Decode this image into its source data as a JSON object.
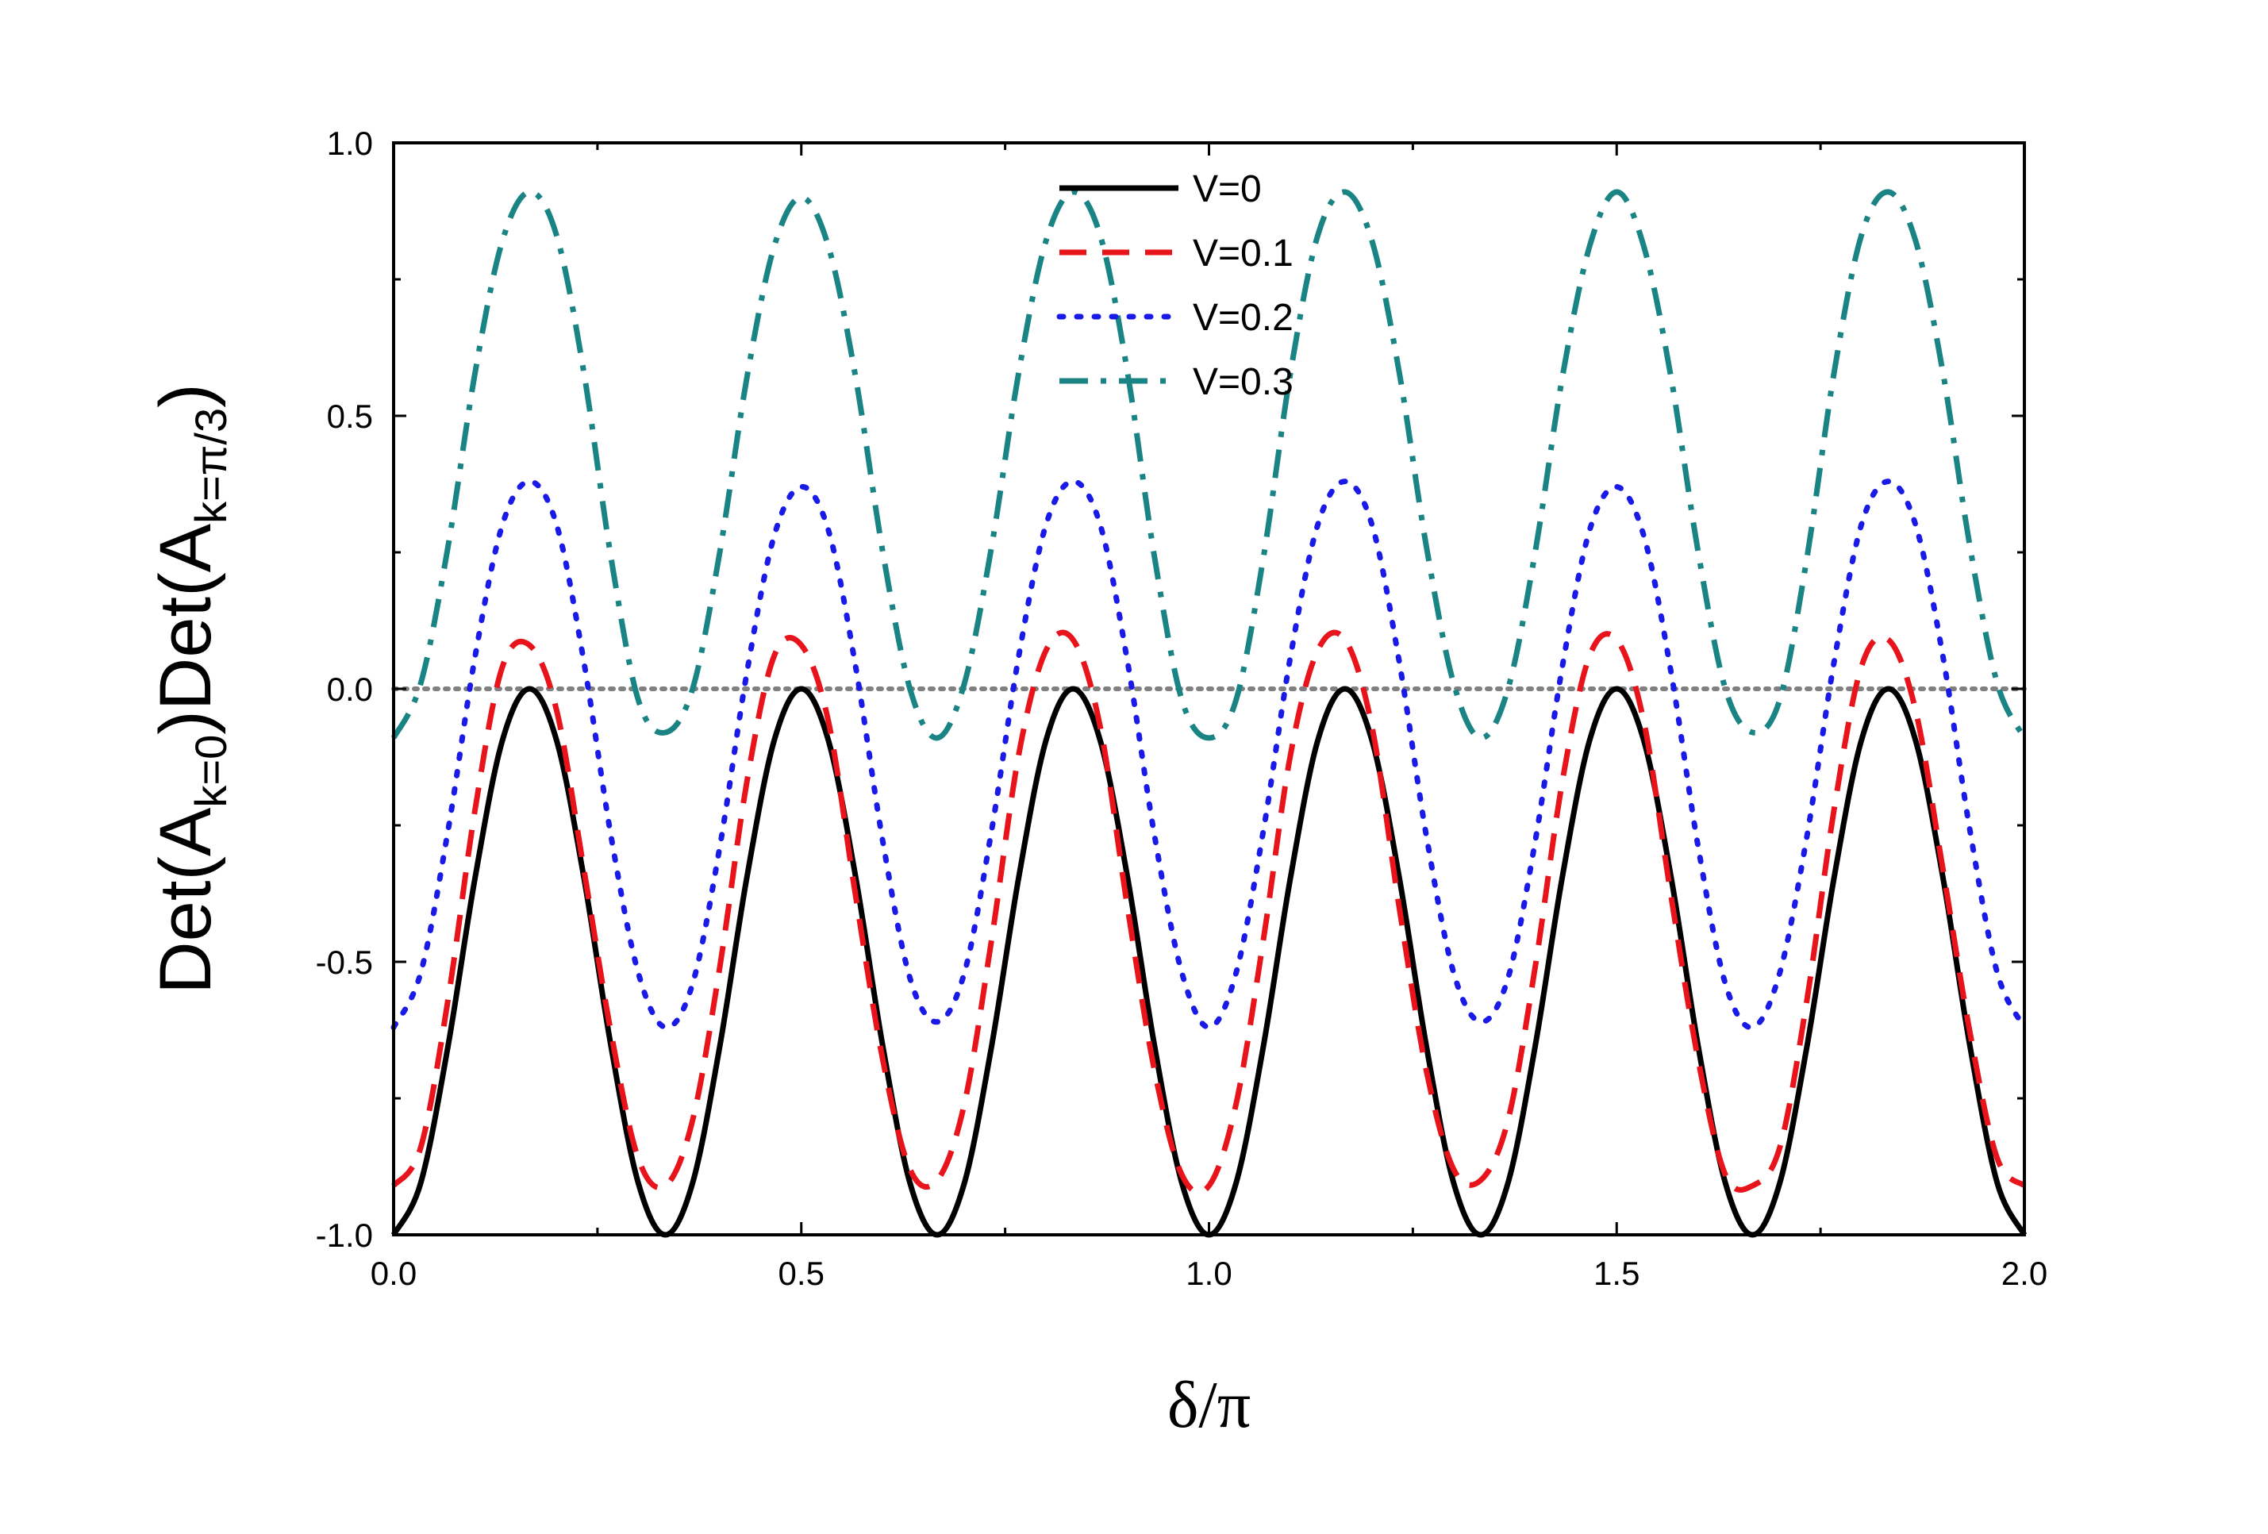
{
  "chart_data": {
    "type": "line",
    "title": "",
    "xlabel": "δ/π",
    "ylabel": {
      "parts": [
        {
          "text": "Det(A",
          "sub": false
        },
        {
          "text": "k=0",
          "sub": true
        },
        {
          "text": ")Det(A",
          "sub": false
        },
        {
          "text": "k=π/3",
          "sub": true
        },
        {
          "text": ")",
          "sub": false
        }
      ]
    },
    "xlim": [
      0,
      2
    ],
    "ylim": [
      -1,
      1
    ],
    "xticks": [
      0,
      0.5,
      1,
      1.5,
      2
    ],
    "xtick_labels": [
      "0.0",
      "0.5",
      "1.0",
      "1.5",
      "2.0"
    ],
    "yticks": [
      -1,
      -0.5,
      0,
      0.5,
      1
    ],
    "ytick_labels": [
      "-1.0",
      "-0.5",
      "0.0",
      "0.5",
      "1.0"
    ],
    "grid": false,
    "legend_position": "top-center",
    "reference_line": {
      "y": 0,
      "color": "#808080",
      "style": "dotted"
    },
    "series": [
      {
        "name": "V=0",
        "color": "#000000",
        "style": "solid",
        "x": [
          0.0,
          0.0333,
          0.0667,
          0.1,
          0.1333,
          0.1667,
          0.2,
          0.2333,
          0.2667,
          0.3,
          0.3333,
          0.3667,
          0.4,
          0.4333,
          0.4667,
          0.5,
          0.5333,
          0.5667,
          0.6,
          0.6333,
          0.6667,
          0.7,
          0.7333,
          0.7667,
          0.8,
          0.8333,
          0.8667,
          0.9,
          0.9333,
          0.9667,
          1.0,
          1.0333,
          1.0667,
          1.1,
          1.1333,
          1.1667,
          1.2,
          1.2333,
          1.2667,
          1.3,
          1.3333,
          1.3667,
          1.4,
          1.4333,
          1.4667,
          1.5,
          1.5333,
          1.5667,
          1.6,
          1.6333,
          1.6667,
          1.7,
          1.7333,
          1.7667,
          1.8,
          1.8333,
          1.8667,
          1.9,
          1.9333,
          1.9667,
          2.0
        ],
        "y": [
          -1.0,
          -0.905,
          -0.655,
          -0.345,
          -0.095,
          0.0,
          -0.095,
          -0.345,
          -0.655,
          -0.905,
          -1.0,
          -0.905,
          -0.655,
          -0.345,
          -0.095,
          0.0,
          -0.095,
          -0.345,
          -0.655,
          -0.905,
          -1.0,
          -0.905,
          -0.655,
          -0.345,
          -0.095,
          0.0,
          -0.095,
          -0.345,
          -0.655,
          -0.905,
          -1.0,
          -0.905,
          -0.655,
          -0.345,
          -0.095,
          0.0,
          -0.095,
          -0.345,
          -0.655,
          -0.905,
          -1.0,
          -0.905,
          -0.655,
          -0.345,
          -0.095,
          0.0,
          -0.095,
          -0.345,
          -0.655,
          -0.905,
          -1.0,
          -0.905,
          -0.655,
          -0.345,
          -0.095,
          0.0,
          -0.095,
          -0.345,
          -0.655,
          -0.905,
          -1.0
        ]
      },
      {
        "name": "V=0.1",
        "color": "#e8141c",
        "style": "dashed",
        "x": [
          0.0,
          0.0333,
          0.0667,
          0.1,
          0.1333,
          0.1667,
          0.2,
          0.2333,
          0.2667,
          0.3,
          0.3333,
          0.3667,
          0.4,
          0.4333,
          0.4667,
          0.5,
          0.5333,
          0.5667,
          0.6,
          0.6333,
          0.6667,
          0.7,
          0.7333,
          0.7667,
          0.8,
          0.8333,
          0.8667,
          0.9,
          0.9333,
          0.9667,
          1.0,
          1.0333,
          1.0667,
          1.1,
          1.1333,
          1.1667,
          1.2,
          1.2333,
          1.2667,
          1.3,
          1.3333,
          1.3667,
          1.4,
          1.4333,
          1.4667,
          1.5,
          1.5333,
          1.5667,
          1.6,
          1.6333,
          1.6667,
          1.7,
          1.7333,
          1.7667,
          1.8,
          1.8333,
          1.8667,
          1.9,
          1.9333,
          1.9667,
          2.0
        ],
        "y": [
          -0.91,
          -0.84,
          -0.57,
          -0.22,
          0.04,
          0.08,
          -0.04,
          -0.33,
          -0.63,
          -0.86,
          -0.91,
          -0.79,
          -0.51,
          -0.17,
          0.06,
          0.08,
          -0.06,
          -0.38,
          -0.68,
          -0.88,
          -0.9,
          -0.76,
          -0.46,
          -0.12,
          0.07,
          0.09,
          -0.07,
          -0.4,
          -0.7,
          -0.89,
          -0.91,
          -0.76,
          -0.46,
          -0.12,
          0.07,
          0.09,
          -0.07,
          -0.4,
          -0.7,
          -0.88,
          -0.9,
          -0.79,
          -0.51,
          -0.17,
          0.06,
          0.09,
          -0.06,
          -0.38,
          -0.68,
          -0.89,
          -0.91,
          -0.84,
          -0.57,
          -0.22,
          0.04,
          0.09,
          -0.04,
          -0.33,
          -0.63,
          -0.86,
          -0.91
        ]
      },
      {
        "name": "V=0.2",
        "color": "#1a1ae6",
        "style": "dotted",
        "x": [
          0.0,
          0.0333,
          0.0667,
          0.1,
          0.1333,
          0.1667,
          0.2,
          0.2333,
          0.2667,
          0.3,
          0.3333,
          0.3667,
          0.4,
          0.4333,
          0.4667,
          0.5,
          0.5333,
          0.5667,
          0.6,
          0.6333,
          0.6667,
          0.7,
          0.7333,
          0.7667,
          0.8,
          0.8333,
          0.8667,
          0.9,
          0.9333,
          0.9667,
          1.0,
          1.0333,
          1.0667,
          1.1,
          1.1333,
          1.1667,
          1.2,
          1.2333,
          1.2667,
          1.3,
          1.3333,
          1.3667,
          1.4,
          1.4333,
          1.4667,
          1.5,
          1.5333,
          1.5667,
          1.6,
          1.6333,
          1.6667,
          1.7,
          1.7333,
          1.7667,
          1.8,
          1.8333,
          1.8667,
          1.9,
          1.9333,
          1.9667,
          2.0
        ],
        "y": [
          -0.62,
          -0.52,
          -0.26,
          0.06,
          0.3,
          0.38,
          0.3,
          0.05,
          -0.27,
          -0.52,
          -0.62,
          -0.54,
          -0.29,
          0.03,
          0.28,
          0.37,
          0.29,
          0.04,
          -0.28,
          -0.53,
          -0.61,
          -0.52,
          -0.26,
          0.06,
          0.3,
          0.38,
          0.3,
          0.05,
          -0.27,
          -0.52,
          -0.62,
          -0.52,
          -0.26,
          0.06,
          0.3,
          0.38,
          0.3,
          0.05,
          -0.27,
          -0.52,
          -0.61,
          -0.53,
          -0.28,
          0.04,
          0.29,
          0.37,
          0.28,
          0.03,
          -0.29,
          -0.54,
          -0.62,
          -0.52,
          -0.27,
          0.05,
          0.3,
          0.38,
          0.3,
          0.06,
          -0.26,
          -0.52,
          -0.62
        ]
      },
      {
        "name": "V=0.3",
        "color": "#1a8484",
        "style": "dash-dot",
        "x": [
          0.0,
          0.0333,
          0.0667,
          0.1,
          0.1333,
          0.1667,
          0.2,
          0.2333,
          0.2667,
          0.3,
          0.3333,
          0.3667,
          0.4,
          0.4333,
          0.4667,
          0.5,
          0.5333,
          0.5667,
          0.6,
          0.6333,
          0.6667,
          0.7,
          0.7333,
          0.7667,
          0.8,
          0.8333,
          0.8667,
          0.9,
          0.9333,
          0.9667,
          1.0,
          1.0333,
          1.0667,
          1.1,
          1.1333,
          1.1667,
          1.2,
          1.2333,
          1.2667,
          1.3,
          1.3333,
          1.3667,
          1.4,
          1.4333,
          1.4667,
          1.5,
          1.5333,
          1.5667,
          1.6,
          1.6333,
          1.6667,
          1.7,
          1.7333,
          1.7667,
          1.8,
          1.8333,
          1.8667,
          1.9,
          1.9333,
          1.9667,
          2.0
        ],
        "y": [
          -0.09,
          0.01,
          0.26,
          0.58,
          0.82,
          0.91,
          0.83,
          0.58,
          0.24,
          -0.02,
          -0.08,
          0.0,
          0.25,
          0.57,
          0.81,
          0.9,
          0.81,
          0.57,
          0.25,
          0.0,
          -0.09,
          0.01,
          0.26,
          0.58,
          0.82,
          0.91,
          0.83,
          0.58,
          0.24,
          -0.02,
          -0.09,
          -0.02,
          0.24,
          0.58,
          0.83,
          0.91,
          0.82,
          0.58,
          0.26,
          0.01,
          -0.09,
          0.0,
          0.25,
          0.57,
          0.81,
          0.91,
          0.81,
          0.57,
          0.25,
          0.0,
          -0.08,
          -0.02,
          0.24,
          0.58,
          0.83,
          0.91,
          0.82,
          0.58,
          0.26,
          0.01,
          -0.09
        ]
      }
    ]
  }
}
